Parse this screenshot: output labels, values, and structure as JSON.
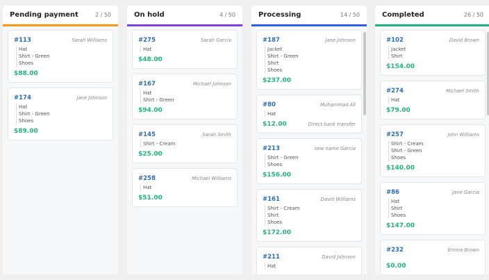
{
  "columns": [
    {
      "title": "Pending payment",
      "count": "2 / 50",
      "color": "#f39c12",
      "scrollbar": false,
      "cards": [
        {
          "order": "#113",
          "customer": "Sarah Williams",
          "items": [
            "Hat",
            "Shirt - Green",
            "Shoes"
          ],
          "price": "$88.00"
        },
        {
          "order": "#174",
          "customer": "Jane Johnson",
          "items": [
            "Hat",
            "Shirt - Green",
            "Shoes"
          ],
          "price": "$89.00"
        }
      ]
    },
    {
      "title": "On hold",
      "count": "4 / 50",
      "color": "#7b3fe4",
      "scrollbar": false,
      "cards": [
        {
          "order": "#275",
          "customer": "Sarah Garcia",
          "items": [
            "Hat"
          ],
          "price": "$48.00"
        },
        {
          "order": "#167",
          "customer": "Michael Johnson",
          "items": [
            "Hat",
            "Shirt - Green"
          ],
          "price": "$94.00"
        },
        {
          "order": "#145",
          "customer": "Sarah Smith",
          "items": [
            "Shirt - Cream"
          ],
          "price": "$25.00"
        },
        {
          "order": "#258",
          "customer": "Michael Williams",
          "items": [
            "Hat"
          ],
          "price": "$51.00"
        }
      ]
    },
    {
      "title": "Processing",
      "count": "14 / 50",
      "color": "#2a5ee8",
      "scrollbar": true,
      "cards": [
        {
          "order": "#187",
          "customer": "Jane Johnson",
          "items": [
            "Jacket",
            "Shirt - Green",
            "Shirt",
            "Shoes"
          ],
          "price": "$237.00"
        },
        {
          "order": "#80",
          "customer": "Muhammad Ali",
          "items": [
            "Hat"
          ],
          "price": "$12.00",
          "payment": "Direct bank transfer"
        },
        {
          "order": "#213",
          "customer": "new name Garcia",
          "items": [
            "Shirt - Green",
            "Shoes"
          ],
          "price": "$156.00"
        },
        {
          "order": "#161",
          "customer": "David Williams",
          "items": [
            "Shirt - Cream",
            "Shirt",
            "Shoes"
          ],
          "price": "$172.00"
        },
        {
          "order": "#211",
          "customer": "David Johnson",
          "items": [
            "Hat"
          ],
          "price": ""
        }
      ]
    },
    {
      "title": "Completed",
      "count": "26 / 50",
      "color": "#1fb07a",
      "scrollbar": true,
      "cards": [
        {
          "order": "#102",
          "customer": "David Brown",
          "items": [
            "Jacket",
            "Shirt"
          ],
          "price": "$154.00"
        },
        {
          "order": "#274",
          "customer": "Michael Smith",
          "items": [
            "Hat"
          ],
          "price": "$79.00"
        },
        {
          "order": "#257",
          "customer": "John Williams",
          "items": [
            "Shirt - Cream",
            "Shirt - Green",
            "Shoes"
          ],
          "price": "$140.00"
        },
        {
          "order": "#86",
          "customer": "Jane Garcia",
          "items": [
            "Hat",
            "Shirt",
            "Shoes"
          ],
          "price": "$147.00"
        },
        {
          "order": "#232",
          "customer": "Emma Brown",
          "items": [],
          "price": "$0.00"
        }
      ]
    }
  ]
}
